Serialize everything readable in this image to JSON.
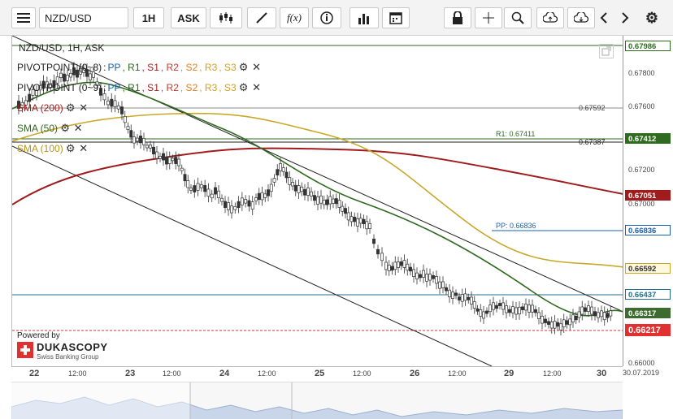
{
  "toolbar": {
    "menu_icon": "menu-icon",
    "instrument": "NZD/USD",
    "period": "1H",
    "side": "ASK",
    "fx_label": "f(x)",
    "icons": [
      "candles-icon",
      "draw-icon",
      "function-icon",
      "info-icon",
      "volume-bars-icon",
      "calendar-icon",
      "lock-icon",
      "crosshair-icon",
      "zoom-icon",
      "upload-icon",
      "download-icon",
      "arrow-left-icon",
      "arrow-right-icon",
      "gear-icon"
    ]
  },
  "chart": {
    "title": "NZD/USD, 1H, ASK",
    "legend": [
      {
        "name": "PIVOTPOINT (0~8)",
        "colon": " : ",
        "parts": [
          "PP",
          ", R1",
          ", S1",
          ", R2",
          ", S2",
          ", R3",
          ", S3"
        ]
      },
      {
        "name": "PIVOTPOINT (0~9)",
        "colon": " : ",
        "parts": [
          "PP",
          ", R1",
          ", S1",
          ", R2",
          ", S2",
          ", R3",
          ", S3"
        ]
      },
      {
        "name": "SMA (200)"
      },
      {
        "name": "SMA (50)"
      },
      {
        "name": "SMA (100)"
      }
    ],
    "line_labels": {
      "l1": "0.67592",
      "l2": "0.67387",
      "r1": "R1: 0.67411",
      "pp": "PP: 0.66836"
    },
    "powered_by": "Powered by",
    "brand": "DUKASCOPY",
    "brand_sub": "Swiss Banking Group",
    "watermark": "0.67000"
  },
  "yaxis": {
    "labels": [
      "0.67986",
      "0.67800",
      "0.67600",
      "0.67412",
      "0.67200",
      "0.67051",
      "0.67000",
      "0.66836",
      "0.66592",
      "0.66437",
      "0.66317",
      "0.66217",
      "0.66000"
    ],
    "tags": [
      {
        "text": "0.67986",
        "bg": "#ffffff",
        "fg": "#2e6b1e",
        "border": "#2e6b1e"
      },
      {
        "text": "0.67412",
        "bg": "#2e6b1e",
        "fg": "#ffffff",
        "border": "#2e6b1e"
      },
      {
        "text": "0.67051",
        "bg": "#a01c1c",
        "fg": "#ffffff",
        "border": "#a01c1c"
      },
      {
        "text": "0.66836",
        "bg": "#ffffff",
        "fg": "#1b5fb0",
        "border": "#1b5fb0"
      },
      {
        "text": "0.66592",
        "bg": "#fff8dc",
        "fg": "#333333",
        "border": "#c9a728"
      },
      {
        "text": "0.66437",
        "bg": "#ffffff",
        "fg": "#1f6f8b",
        "border": "#1f6f8b"
      },
      {
        "text": "0.66317",
        "bg": "#3d6b2f",
        "fg": "#ffffff",
        "border": "#3d6b2f"
      },
      {
        "text": "0.66217",
        "bg": "#e03030",
        "fg": "#ffffff",
        "border": "#e03030"
      }
    ]
  },
  "xaxis": {
    "labels": [
      "22",
      "12:00",
      "23",
      "12:00",
      "24",
      "12:00",
      "25",
      "12:00",
      "26",
      "12:00",
      "29",
      "12:00",
      "30"
    ],
    "date": "30.07.2019"
  },
  "colors": {
    "sma200": "#a01c1c",
    "sma50": "#2e6b1e",
    "sma100": "#c9a728",
    "pp": "#1b5fb0",
    "r1": "#2e6b1e",
    "s1": "#a01c1c",
    "r2": "#c0392b",
    "s2": "#e67e22",
    "r3": "#d4a017",
    "s3": "#d4a017"
  }
}
